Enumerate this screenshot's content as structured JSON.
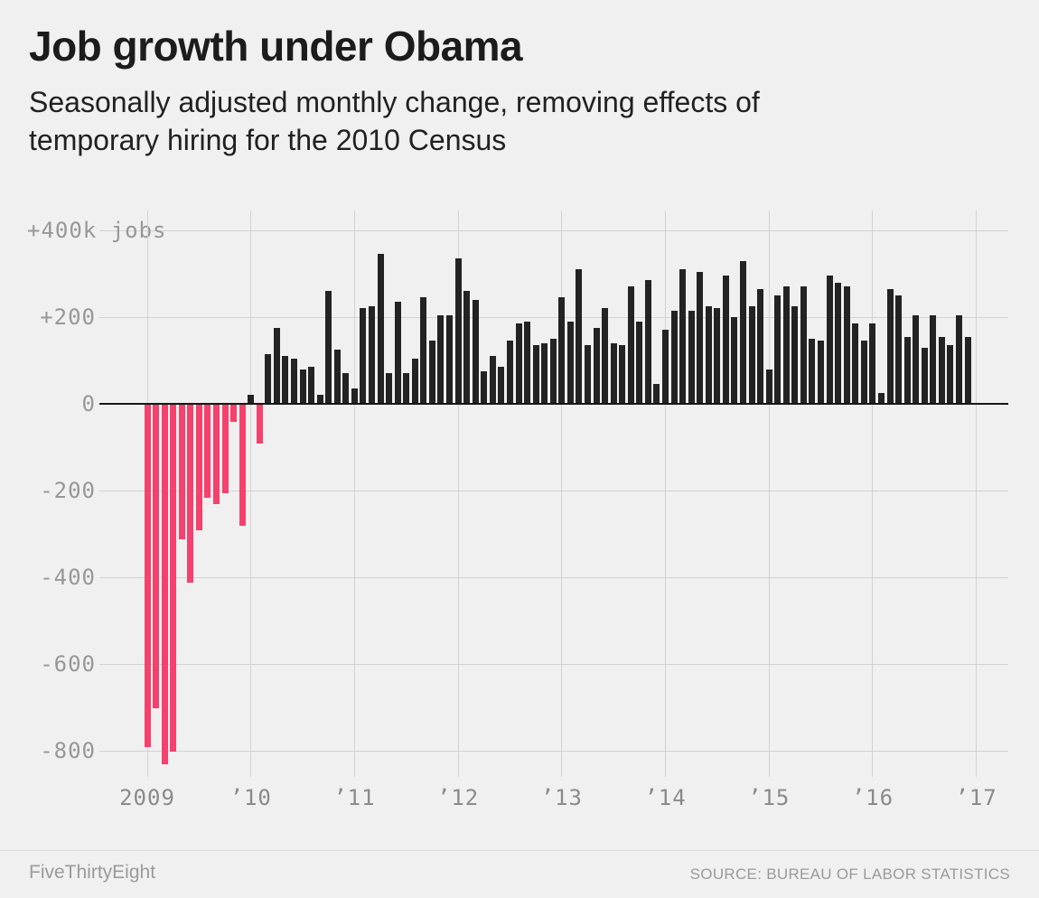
{
  "chart_data": {
    "type": "bar",
    "title": "Job growth under Obama",
    "subtitle": "Seasonally adjusted monthly change, removing effects of\ntemporary hiring for the 2010 Census",
    "unit": "thousands of jobs per month",
    "frequency": "monthly",
    "x_start": "2009-01",
    "x_end": "2016-12",
    "ylim": [
      -900,
      430
    ],
    "grid": true,
    "legend": "none",
    "colors": {
      "positive": "#232323",
      "negative": "#f5416d",
      "background": "#f0f0f0",
      "gridline": "#d2d2d2",
      "zero_line": "#161616"
    },
    "y_ticks": [
      {
        "value": 400,
        "label": "+400k jobs"
      },
      {
        "value": 200,
        "label": "+200"
      },
      {
        "value": 0,
        "label": "0"
      },
      {
        "value": -200,
        "label": "-200"
      },
      {
        "value": -400,
        "label": "-400"
      },
      {
        "value": -600,
        "label": "-600"
      },
      {
        "value": -800,
        "label": "-800"
      }
    ],
    "x_ticks": [
      "2009",
      "’10",
      "’11",
      "’12",
      "’13",
      "’14",
      "’15",
      "’16",
      "’17"
    ],
    "values": [
      -790,
      -700,
      -830,
      -800,
      -310,
      -410,
      -290,
      -215,
      -230,
      -205,
      -40,
      -280,
      20,
      -90,
      115,
      175,
      110,
      105,
      80,
      85,
      20,
      260,
      125,
      70,
      35,
      220,
      225,
      345,
      70,
      235,
      70,
      105,
      245,
      145,
      205,
      205,
      335,
      260,
      240,
      75,
      110,
      85,
      145,
      185,
      190,
      135,
      140,
      150,
      245,
      190,
      310,
      135,
      175,
      220,
      140,
      135,
      270,
      190,
      285,
      45,
      170,
      215,
      310,
      215,
      305,
      225,
      220,
      295,
      200,
      330,
      225,
      265,
      80,
      250,
      270,
      225,
      270,
      150,
      145,
      295,
      280,
      270,
      185,
      145,
      185,
      25,
      265,
      250,
      155,
      205,
      130,
      205,
      155,
      135,
      205,
      155
    ]
  },
  "footer": {
    "brand": "FiveThirtyEight",
    "source": "SOURCE: BUREAU OF LABOR STATISTICS"
  }
}
